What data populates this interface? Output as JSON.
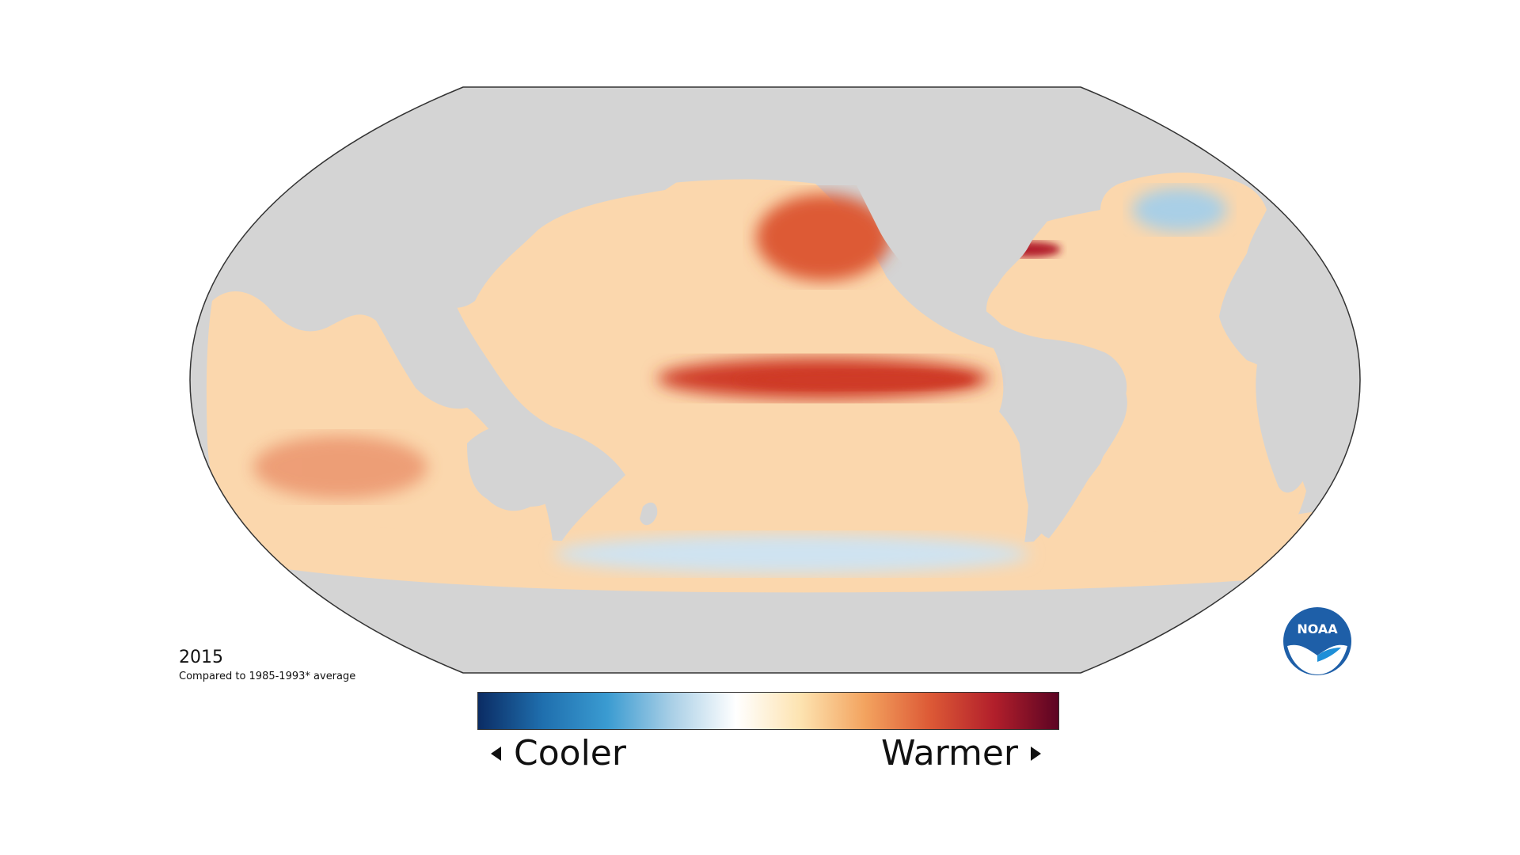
{
  "title": {
    "year": "2015",
    "comparison": "Compared to 1985-1993* average"
  },
  "legend": {
    "cooler_label": "Cooler",
    "warmer_label": "Warmer",
    "gradient_colors": [
      "#0b2c64",
      "#1f6fae",
      "#3a9bd1",
      "#a9cfe6",
      "#ffffff",
      "#fde3b0",
      "#f3a35f",
      "#dd5a36",
      "#b21f2b",
      "#5c0423"
    ]
  },
  "map": {
    "land_color": "#d4d4d4",
    "outline_color": "#333333",
    "ocean_base_color": "#fbd7ad",
    "anomaly_features": [
      {
        "name": "equatorial-pacific-warm-band",
        "color": "#cf3b26"
      },
      {
        "name": "northeast-pacific-warm-blob",
        "color": "#dd5a36"
      },
      {
        "name": "north-atlantic-cold-patch",
        "color": "#a9cfe6"
      },
      {
        "name": "southern-ocean-cool-band",
        "color": "#cfe3f1"
      },
      {
        "name": "us-east-coast-warm-strip",
        "color": "#b21f2b"
      }
    ]
  },
  "logo": {
    "text": "NOAA",
    "color": "#1e5fa8"
  }
}
